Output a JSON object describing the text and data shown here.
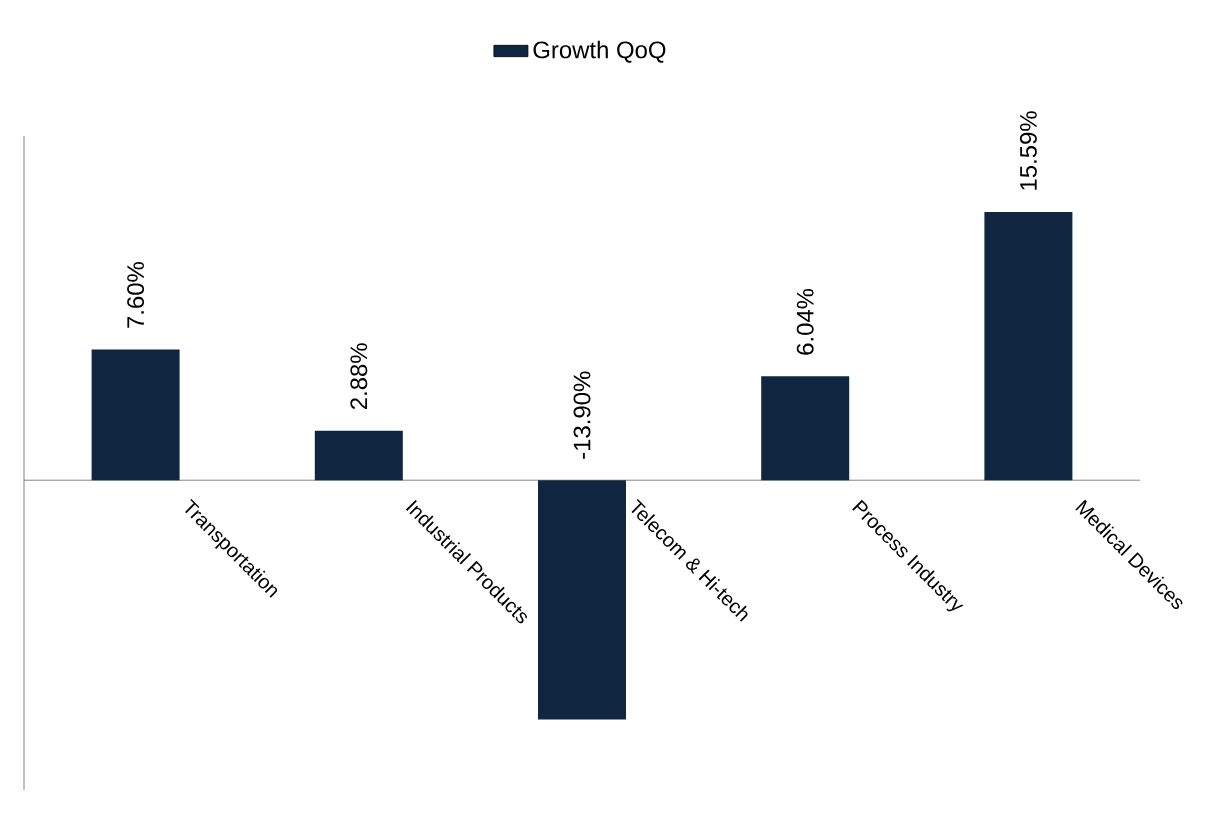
{
  "chart_data": {
    "type": "bar",
    "categories": [
      "Transportation",
      "Industrial Products",
      "Telecom & Hi-tech",
      "Process Industry",
      "Medical Devices"
    ],
    "series": [
      {
        "name": "Growth QoQ",
        "color": "#0f2540",
        "values": [
          7.6,
          2.88,
          -13.9,
          6.04,
          15.59
        ],
        "value_labels": [
          "7.60%",
          "2.88%",
          "-13.90%",
          "6.04%",
          "15.59%"
        ]
      }
    ],
    "ylim": [
      -18,
      20
    ],
    "tick_labels": "x",
    "legend": "top"
  }
}
